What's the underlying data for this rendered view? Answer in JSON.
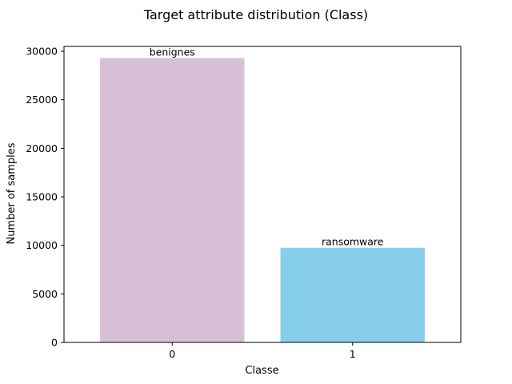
{
  "chart_data": {
    "type": "bar",
    "title": "Target attribute distribution (Class)",
    "xlabel": "Classe",
    "ylabel": "Number of samples",
    "categories": [
      "0",
      "1"
    ],
    "values": [
      29300,
      9750
    ],
    "bar_labels": [
      "benignes",
      "ransomware"
    ],
    "bar_colors": [
      "#d8bfd8",
      "#87ceeb"
    ],
    "ylim": [
      0,
      30500
    ],
    "yticks": [
      0,
      5000,
      10000,
      15000,
      20000,
      25000,
      30000
    ],
    "ytick_labels": [
      "0",
      "5000",
      "10000",
      "15000",
      "20000",
      "25000",
      "30000"
    ],
    "grid": false,
    "legend": "none"
  }
}
